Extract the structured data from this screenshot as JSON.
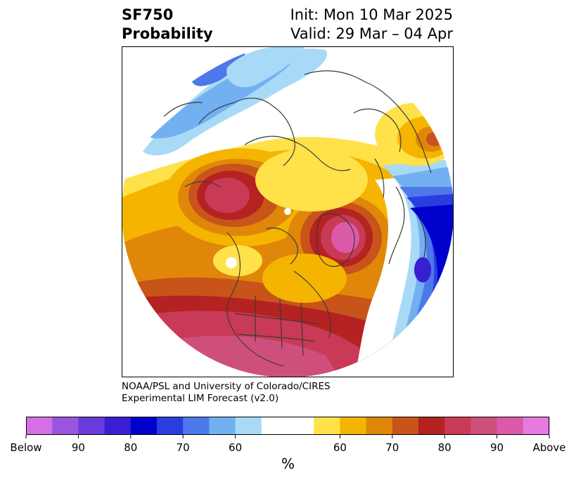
{
  "header": {
    "variable": "SF750",
    "product": "Probability",
    "init": "Init: Mon 10 Mar 2025",
    "valid": "Valid: 29 Mar – 04 Apr"
  },
  "credit": {
    "line1": "NOAA/PSL and University of Colorado/CIRES",
    "line2": "Experimental LIM Forecast (v2.0)"
  },
  "colorbar": {
    "unit": "%",
    "tick_labels": [
      "Below",
      "90",
      "80",
      "70",
      "60",
      "60",
      "70",
      "80",
      "90",
      "Above"
    ],
    "colors": [
      "#d66ee6",
      "#9a55e0",
      "#6a3ada",
      "#3a1ed2",
      "#0000cc",
      "#2a3ee0",
      "#4c78ea",
      "#72b0f2",
      "#a8daf8",
      "#ffffff",
      "#ffffff",
      "#ffe14a",
      "#f5b400",
      "#e0870a",
      "#c8541a",
      "#b42222",
      "#c83a55",
      "#cf4f7c",
      "#db5aa8",
      "#e77ae0"
    ]
  },
  "map": {
    "projection": "north-polar-stereographic",
    "coastline_color": "#3a3a3a"
  }
}
